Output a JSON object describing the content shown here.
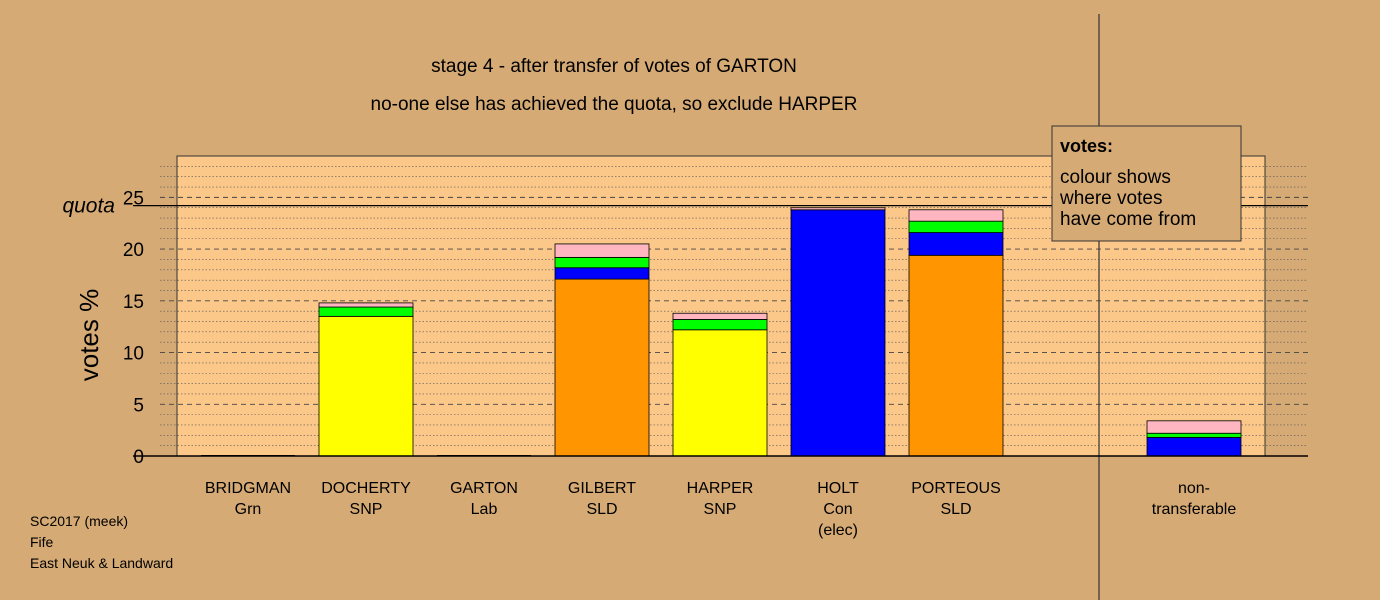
{
  "chart_data": {
    "type": "bar",
    "stacked": true,
    "title": "stage 4 - after transfer of votes of GARTON",
    "subtitle": "no-one else has achieved the quota, so exclude HARPER",
    "ylabel": "votes %",
    "ylim": [
      0,
      29
    ],
    "yticks": [
      0,
      5,
      10,
      15,
      20,
      25
    ],
    "quota": {
      "label": "quota",
      "value": 24.2
    },
    "grid": true,
    "colors": {
      "SNP": "#ffff00",
      "SLD": "#ff9500",
      "Con": "#0000ff",
      "Lab": "#ff0000",
      "Grn": "#00ff00",
      "other": "#ffb6c1"
    },
    "bars": [
      {
        "name": "BRIDGMAN",
        "party": "Grn",
        "note": "",
        "segments": []
      },
      {
        "name": "DOCHERTY",
        "party": "SNP",
        "note": "",
        "segments": [
          {
            "from": "SNP",
            "value": 13.5
          },
          {
            "from": "Grn",
            "value": 0.9
          },
          {
            "from": "other",
            "value": 0.4
          }
        ]
      },
      {
        "name": "GARTON",
        "party": "Lab",
        "note": "",
        "segments": []
      },
      {
        "name": "GILBERT",
        "party": "SLD",
        "note": "",
        "segments": [
          {
            "from": "SLD",
            "value": 17.1
          },
          {
            "from": "Con",
            "value": 1.1
          },
          {
            "from": "Grn",
            "value": 1.0
          },
          {
            "from": "other",
            "value": 1.3
          }
        ]
      },
      {
        "name": "HARPER",
        "party": "SNP",
        "note": "",
        "segments": [
          {
            "from": "SNP",
            "value": 12.2
          },
          {
            "from": "Grn",
            "value": 1.0
          },
          {
            "from": "other",
            "value": 0.6
          }
        ]
      },
      {
        "name": "HOLT",
        "party": "Con",
        "note": "(elec)",
        "segments": [
          {
            "from": "Con",
            "value": 23.8
          },
          {
            "from": "other",
            "value": 0.2
          }
        ]
      },
      {
        "name": "PORTEOUS",
        "party": "SLD",
        "note": "",
        "segments": [
          {
            "from": "SLD",
            "value": 19.4
          },
          {
            "from": "Con",
            "value": 2.2
          },
          {
            "from": "Grn",
            "value": 1.1
          },
          {
            "from": "other",
            "value": 1.1
          }
        ]
      }
    ],
    "nontransferable": {
      "label_line1": "non-",
      "label_line2": "transferable",
      "segments": [
        {
          "from": "Con",
          "value": 1.8
        },
        {
          "from": "Grn",
          "value": 0.4
        },
        {
          "from": "other",
          "value": 1.2
        }
      ]
    }
  },
  "legend": {
    "title": "votes:",
    "lines": [
      "colour shows",
      "where votes",
      "have come from"
    ]
  },
  "footer": [
    "SC2017 (meek)",
    "Fife",
    "East Neuk & Landward"
  ]
}
